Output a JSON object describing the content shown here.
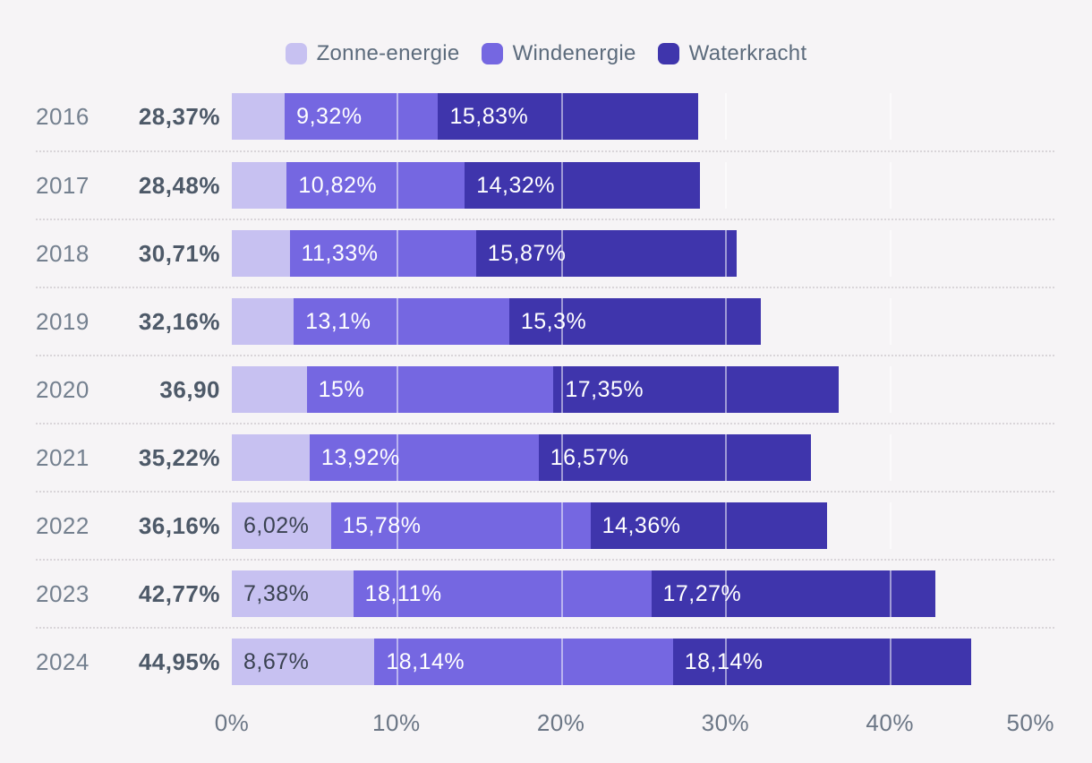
{
  "background": "#f6f4f6",
  "legend": {
    "items": [
      {
        "label": "Zonne-energie",
        "color": "#c7c1f1"
      },
      {
        "label": "Windenergie",
        "color": "#7567e1"
      },
      {
        "label": "Waterkracht",
        "color": "#3f35ac"
      }
    ]
  },
  "chart_data": {
    "type": "bar",
    "variant": "horizontal-stacked",
    "title": "",
    "unit": "percent",
    "xlim": [
      0,
      50
    ],
    "x_ticks": [
      "0%",
      "10%",
      "20%",
      "30%",
      "40%",
      "50%"
    ],
    "grid": "vertical gridlines every 10%, visible only over bars",
    "legend_position": "top-center",
    "categories": [
      "2016",
      "2017",
      "2018",
      "2019",
      "2020",
      "2021",
      "2022",
      "2023",
      "2024"
    ],
    "totals": [
      "28,37%",
      "28,48%",
      "30,71%",
      "32,16%",
      "36,90",
      "35,22%",
      "36,16%",
      "42,77%",
      "44,95%"
    ],
    "series": [
      {
        "name": "Zonne-energie",
        "color": "#c7c1f1",
        "label_color": "#3a4251",
        "values": [
          3.22,
          3.34,
          3.51,
          3.76,
          4.55,
          4.73,
          6.02,
          7.38,
          8.67
        ],
        "labels": [
          "",
          "",
          "",
          "",
          "",
          "",
          "6,02%",
          "7,38%",
          "8,67%"
        ]
      },
      {
        "name": "Windenergie",
        "color": "#7567e1",
        "label_color": "#ffffff",
        "values": [
          9.32,
          10.82,
          11.33,
          13.1,
          15,
          13.92,
          15.78,
          18.11,
          18.14
        ],
        "labels": [
          "9,32%",
          "10,82%",
          "11,33%",
          "13,1%",
          "15%",
          "13,92%",
          "15,78%",
          "18,11%",
          "18,14%"
        ]
      },
      {
        "name": "Waterkracht",
        "color": "#3f35ac",
        "label_color": "#ffffff",
        "values": [
          15.83,
          14.32,
          15.87,
          15.3,
          17.35,
          16.57,
          14.36,
          17.27,
          18.14
        ],
        "labels": [
          "15,83%",
          "14,32%",
          "15,87%",
          "15,3%",
          "17,35%",
          "16,57%",
          "14,36%",
          "17,27%",
          "18,14%"
        ]
      }
    ],
    "gridline_positions_pct": [
      10,
      20,
      30,
      40
    ]
  },
  "colors": {
    "background": "#f6f4f6",
    "year_label": "#74808f",
    "total_label": "#4d5968",
    "axis_label": "#6b7685",
    "legend_label": "#5c6b7c",
    "row_separator": "#d9d5d9",
    "gridline_over_bar": "rgba(255,255,255,0.5)"
  }
}
